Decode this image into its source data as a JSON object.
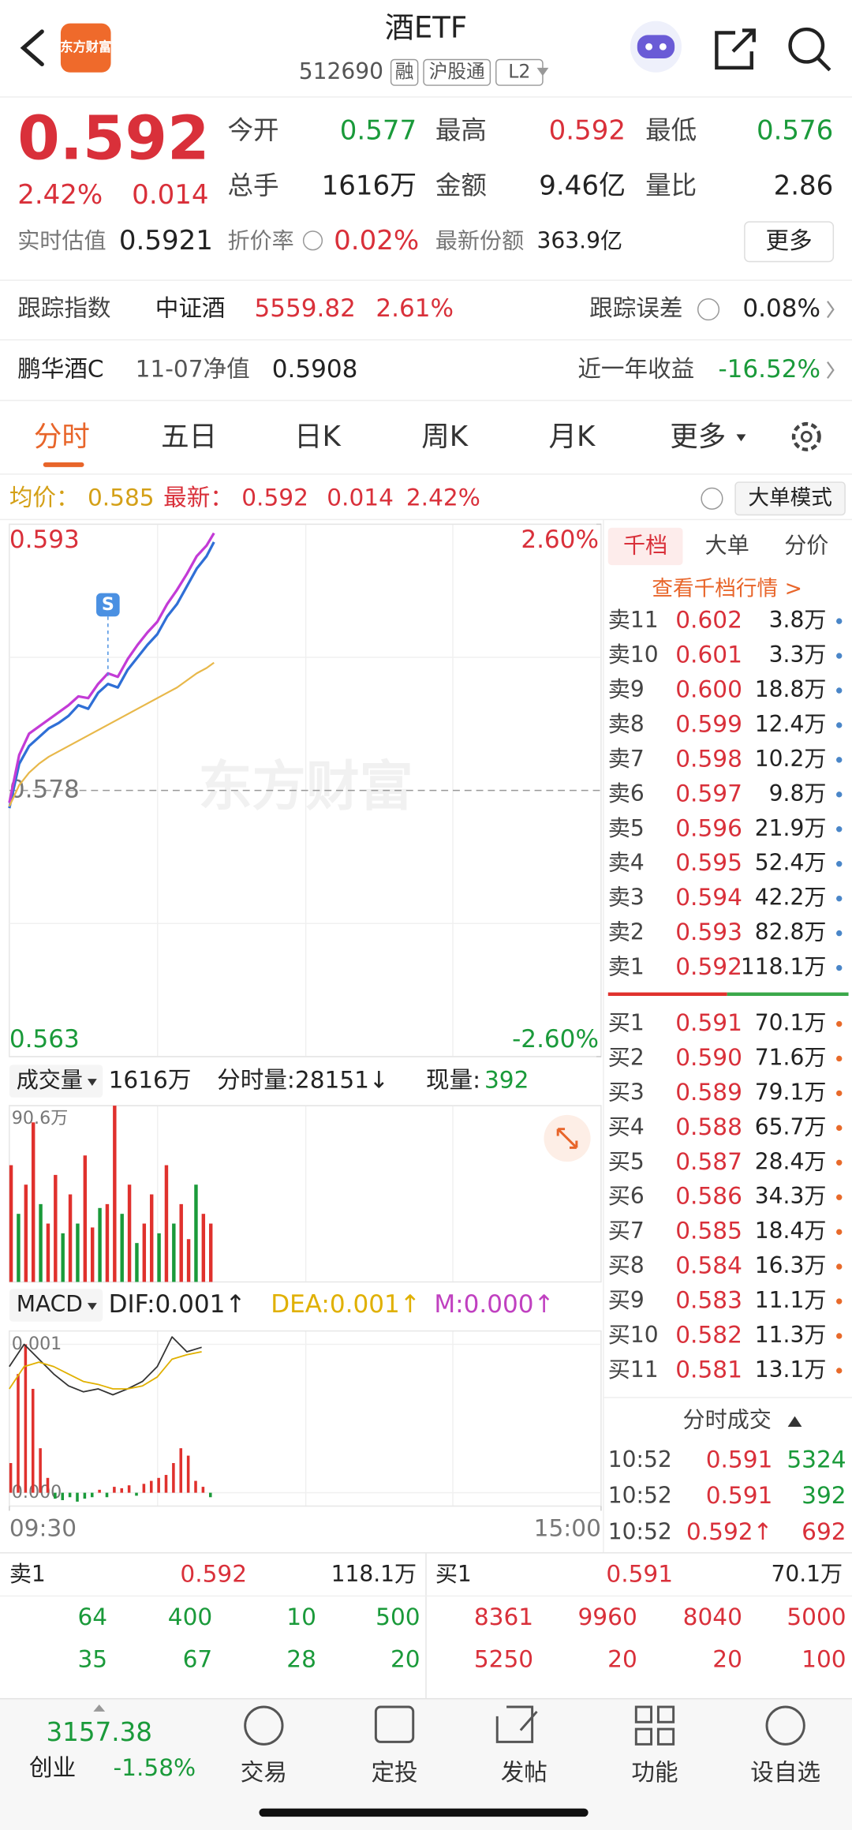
{
  "header": {
    "logo": "东方财富",
    "title": "酒ETF",
    "code": "512690",
    "tags": [
      "融",
      "沪股通",
      "L2"
    ]
  },
  "quote": {
    "price": "0.592",
    "change_pct": "2.42%",
    "change": "0.014",
    "stats": [
      {
        "label": "今开",
        "value": "0.577",
        "color": "#1a9a3a"
      },
      {
        "label": "最高",
        "value": "0.592",
        "color": "#d9303a"
      },
      {
        "label": "最低",
        "value": "0.576",
        "color": "#1a9a3a"
      },
      {
        "label": "总手",
        "value": "1616万",
        "color": "#222222"
      },
      {
        "label": "金额",
        "value": "9.46亿",
        "color": "#222222"
      },
      {
        "label": "量比",
        "value": "2.86",
        "color": "#222222"
      }
    ],
    "iopv_label": "实时估值",
    "iopv": "0.5921",
    "premium_label": "折价率",
    "premium": "0.02%",
    "shares_label": "最新份额",
    "shares": "363.9亿",
    "more": "更多"
  },
  "tracking": {
    "label": "跟踪指数",
    "index": "中证酒",
    "value": "5559.82",
    "pct": "2.61%",
    "error_label": "跟踪误差",
    "error": "0.08%"
  },
  "fund": {
    "name": "鹏华酒C",
    "nav_label": "11-07净值",
    "nav": "0.5908",
    "return_label": "近一年收益",
    "return": "-16.52%"
  },
  "tabs": [
    "分时",
    "五日",
    "日K",
    "周K",
    "月K",
    "更多"
  ],
  "summary": {
    "avg_label": "均价：",
    "avg": "0.585",
    "latest_label": "最新：",
    "latest": "0.592",
    "change": "0.014",
    "pct": "2.42%",
    "mode": "大单模式"
  },
  "volume_header": {
    "label": "成交量",
    "total": "1616万",
    "tick_volume": "分时量:28151↓",
    "current_label": "现量:",
    "current": "392"
  },
  "macd_header": {
    "label": "MACD",
    "dif": "DIF:0.001↑",
    "dea": "DEA:0.001↑",
    "m": "M:0.000↑"
  },
  "chart_data": [
    {
      "type": "line",
      "watermark": "东方财富",
      "xlim": [
        0,
        240
      ],
      "ylim": [
        0.563,
        0.593
      ],
      "yticks": [
        0.563,
        0.578,
        0.593
      ],
      "y2lim": [
        -2.6,
        2.6
      ],
      "y2ticks": [
        {
          "value": -2.6,
          "label": "-2.60%"
        },
        {
          "value": 2.6,
          "label": "2.60%"
        }
      ],
      "x": [
        0,
        4,
        8,
        12,
        16,
        20,
        24,
        28,
        32,
        36,
        40,
        44,
        48,
        52,
        56,
        60,
        64,
        68,
        72,
        76,
        80,
        83
      ],
      "series": [
        {
          "color": "#2f6fd6",
          "values": [
            0.577,
            0.5795,
            0.5805,
            0.581,
            0.5815,
            0.5818,
            0.5822,
            0.5828,
            0.5826,
            0.5835,
            0.584,
            0.5838,
            0.5848,
            0.5855,
            0.5862,
            0.5868,
            0.5878,
            0.5885,
            0.5895,
            0.5905,
            0.5912,
            0.592
          ]
        },
        {
          "color": "#c33bd6",
          "values": [
            0.5773,
            0.58,
            0.5812,
            0.5816,
            0.582,
            0.5824,
            0.5828,
            0.5833,
            0.5832,
            0.584,
            0.5846,
            0.5844,
            0.5854,
            0.5862,
            0.5869,
            0.5875,
            0.5885,
            0.5893,
            0.5902,
            0.5912,
            0.5918,
            0.5925
          ]
        },
        {
          "color": "#e8b84a",
          "values": [
            0.5771,
            0.5783,
            0.579,
            0.5795,
            0.5799,
            0.5802,
            0.5805,
            0.5808,
            0.5811,
            0.5814,
            0.5817,
            0.582,
            0.5823,
            0.5826,
            0.5829,
            0.5832,
            0.5835,
            0.5838,
            0.5842,
            0.5846,
            0.5849,
            0.5852
          ]
        }
      ],
      "annotations": [
        {
          "x": 40,
          "label": "S"
        }
      ]
    },
    {
      "type": "bar",
      "xlim": [
        0,
        240
      ],
      "ylim": [
        0,
        90.6
      ],
      "yticks": [
        {
          "value": 90.6,
          "label": "90.6万"
        }
      ],
      "x": [
        0,
        3,
        6,
        9,
        12,
        15,
        18,
        21,
        24,
        27,
        30,
        33,
        36,
        39,
        42,
        45,
        48,
        51,
        54,
        57,
        60,
        63,
        66,
        69,
        72,
        75,
        78,
        81
      ],
      "values": [
        60,
        35,
        50,
        82,
        40,
        30,
        55,
        25,
        45,
        30,
        65,
        28,
        38,
        40,
        90.6,
        35,
        50,
        20,
        30,
        45,
        25,
        60,
        30,
        40,
        22,
        50,
        35,
        30
      ],
      "colors": [
        "#e0312d",
        "#1a9a3a",
        "#e0312d",
        "#e0312d",
        "#1a9a3a",
        "#e0312d",
        "#e0312d",
        "#1a9a3a",
        "#e0312d",
        "#1a9a3a",
        "#e0312d",
        "#e0312d",
        "#1a9a3a",
        "#e0312d",
        "#e0312d",
        "#1a9a3a",
        "#e0312d",
        "#1a9a3a",
        "#e0312d",
        "#e0312d",
        "#1a9a3a",
        "#e0312d",
        "#1a9a3a",
        "#e0312d",
        "#e0312d",
        "#1a9a3a",
        "#e0312d",
        "#e0312d"
      ]
    },
    {
      "type": "macd",
      "xlim": [
        0,
        240
      ],
      "xticks": [
        {
          "value": 0,
          "label": "09:30"
        },
        {
          "value": 240,
          "label": "15:00"
        }
      ],
      "ylim": [
        -9e-05,
        0.00109
      ],
      "yticks": [
        {
          "value": 0,
          "label": "0.000"
        },
        0.001
      ],
      "x": [
        0,
        6,
        12,
        18,
        24,
        30,
        36,
        42,
        48,
        54,
        60,
        66,
        72,
        78
      ],
      "series": [
        {
          "color": "#333333",
          "values": [
            0.00085,
            0.001,
            0.0009,
            0.0008,
            0.00072,
            0.00068,
            0.0007,
            0.00066,
            0.0007,
            0.00075,
            0.00085,
            0.00105,
            0.00095,
            0.00098
          ]
        },
        {
          "color": "#e0b000",
          "values": [
            0.0007,
            0.00085,
            0.00088,
            0.00085,
            0.0008,
            0.00075,
            0.00073,
            0.0007,
            0.0007,
            0.00072,
            0.00078,
            0.0009,
            0.00093,
            0.00095
          ]
        }
      ],
      "hist_x": [
        0,
        3,
        6,
        9,
        12,
        15,
        18,
        21,
        24,
        27,
        30,
        33,
        36,
        39,
        42,
        45,
        48,
        51,
        54,
        57,
        60,
        63,
        66,
        69,
        72,
        75,
        78,
        81
      ],
      "hist": [
        0.0002,
        0.0008,
        0.001,
        0.0007,
        0.0003,
        0.0001,
        -4e-05,
        -5e-05,
        -3e-05,
        -6e-05,
        -4e-05,
        -3e-05,
        2e-05,
        -3e-05,
        4e-05,
        3e-05,
        5e-05,
        -2e-05,
        6e-05,
        8e-05,
        0.0001,
        0.00012,
        0.0002,
        0.0003,
        0.00025,
        8e-05,
        4e-05,
        -3e-05
      ],
      "up_color": "#e0312d",
      "down_color": "#1a9a3a"
    }
  ],
  "order_book": {
    "tabs": [
      "千档",
      "大单",
      "分价"
    ],
    "link": "查看千档行情 >",
    "asks": [
      {
        "label": "卖11",
        "price": "0.602",
        "volume": "3.8万"
      },
      {
        "label": "卖10",
        "price": "0.601",
        "volume": "3.3万"
      },
      {
        "label": "卖9",
        "price": "0.600",
        "volume": "18.8万"
      },
      {
        "label": "卖8",
        "price": "0.599",
        "volume": "12.4万"
      },
      {
        "label": "卖7",
        "price": "0.598",
        "volume": "10.2万"
      },
      {
        "label": "卖6",
        "price": "0.597",
        "volume": "9.8万"
      },
      {
        "label": "卖5",
        "price": "0.596",
        "volume": "21.9万"
      },
      {
        "label": "卖4",
        "price": "0.595",
        "volume": "52.4万"
      },
      {
        "label": "卖3",
        "price": "0.594",
        "volume": "42.2万"
      },
      {
        "label": "卖2",
        "price": "0.593",
        "volume": "82.8万"
      },
      {
        "label": "卖1",
        "price": "0.592",
        "volume": "118.1万"
      }
    ],
    "bids": [
      {
        "label": "买1",
        "price": "0.591",
        "volume": "70.1万"
      },
      {
        "label": "买2",
        "price": "0.590",
        "volume": "71.6万"
      },
      {
        "label": "买3",
        "price": "0.589",
        "volume": "79.1万"
      },
      {
        "label": "买4",
        "price": "0.588",
        "volume": "65.7万"
      },
      {
        "label": "买5",
        "price": "0.587",
        "volume": "28.4万"
      },
      {
        "label": "买6",
        "price": "0.586",
        "volume": "34.3万"
      },
      {
        "label": "买7",
        "price": "0.585",
        "volume": "18.4万"
      },
      {
        "label": "买8",
        "price": "0.584",
        "volume": "16.3万"
      },
      {
        "label": "买9",
        "price": "0.583",
        "volume": "11.1万"
      },
      {
        "label": "买10",
        "price": "0.582",
        "volume": "11.3万"
      },
      {
        "label": "买11",
        "price": "0.581",
        "volume": "13.1万"
      }
    ],
    "trades_title": "分时成交",
    "trades": [
      {
        "time": "10:52",
        "price": "0.591",
        "volume": "5324",
        "color": "#1a9a3a"
      },
      {
        "time": "10:52",
        "price": "0.591",
        "volume": "392",
        "color": "#1a9a3a"
      },
      {
        "time": "10:52",
        "price": "0.592↑",
        "volume": "692",
        "color": "#d9303a"
      }
    ]
  },
  "depth": {
    "ask": {
      "label": "卖1",
      "price": "0.592",
      "volume": "118.1万",
      "rows": [
        [
          "64",
          "400",
          "10",
          "500"
        ],
        [
          "35",
          "67",
          "28",
          "20"
        ]
      ]
    },
    "bid": {
      "label": "买1",
      "price": "0.591",
      "volume": "70.1万",
      "rows": [
        [
          "8361",
          "9960",
          "8040",
          "5000"
        ],
        [
          "5250",
          "20",
          "20",
          "100"
        ]
      ]
    }
  },
  "nav": {
    "index_value": "3157.38",
    "index_name": "创业",
    "index_change": "-1.58%",
    "items": [
      "交易",
      "定投",
      "发帖",
      "功能",
      "设自选"
    ]
  }
}
